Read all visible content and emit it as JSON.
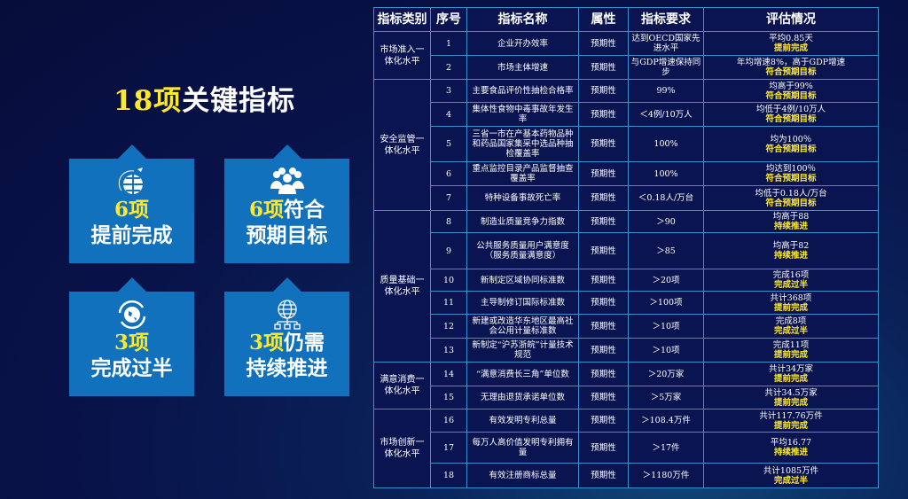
{
  "title": {
    "highlight": "18项",
    "rest": "关键指标"
  },
  "cards": [
    {
      "icon": "globe-airplane-icon",
      "count": "6项",
      "suffix": "",
      "line2": "提前完成"
    },
    {
      "icon": "people-group-icon",
      "count": "6项",
      "suffix": "符合",
      "line2": "预期目标"
    },
    {
      "icon": "earth-refresh-icon",
      "count": "3项",
      "suffix": "",
      "line2": "完成过半"
    },
    {
      "icon": "globe-network-icon",
      "count": "3项",
      "suffix": "仍需",
      "line2": "持续推进"
    }
  ],
  "table": {
    "headers": [
      "指标类别",
      "序号",
      "指标名称",
      "属性",
      "指标要求",
      "评估情况"
    ],
    "categories": [
      {
        "label": "市场准入一体化水平",
        "rows": 2
      },
      {
        "label": "安全监管一体化水平",
        "rows": 5
      },
      {
        "label": "质量基础一体化水平",
        "rows": 6
      },
      {
        "label": "满意消费一体化水平",
        "rows": 2
      },
      {
        "label": "市场创新一体化水平",
        "rows": 3
      }
    ],
    "rows": [
      {
        "no": "1",
        "name": "企业开办效率",
        "attr": "预期性",
        "req": "达到OECD国家先进水平",
        "eval": "平均0.85天",
        "status": "提前完成"
      },
      {
        "no": "2",
        "name": "市场主体增速",
        "attr": "预期性",
        "req": "与GDP增速保持同步",
        "eval": "年均增速8%，高于GDP增速",
        "status": "符合预期目标"
      },
      {
        "no": "3",
        "name": "主要食品评价性抽检合格率",
        "attr": "预期性",
        "req": "99%",
        "eval": "均高于99%",
        "status": "符合预期目标"
      },
      {
        "no": "4",
        "name": "集体性食物中毒事故年发生率",
        "attr": "预期性",
        "req": "＜4例/10万人",
        "eval": "均低于4例/10万人",
        "status": "符合预期目标"
      },
      {
        "no": "5",
        "name": "三省一市在产基本药物品种和药品国家集采中选品种抽检覆盖率",
        "attr": "预期性",
        "req": "100%",
        "eval": "均为100％",
        "status": "符合预期目标"
      },
      {
        "no": "6",
        "name": "重点监控目录产品监督抽查覆盖率",
        "attr": "预期性",
        "req": "100%",
        "eval": "均达到100％",
        "status": "符合预期目标"
      },
      {
        "no": "7",
        "name": "特种设备事故死亡率",
        "attr": "预期性",
        "req": "＜0.18人/万台",
        "eval": "均低于0.18人/万台",
        "status": "符合预期目标"
      },
      {
        "no": "8",
        "name": "制造业质量竞争力指数",
        "attr": "预期性",
        "req": "＞90",
        "eval": "均高于88",
        "status": "持续推进"
      },
      {
        "no": "9",
        "name": "公共服务质量用户满意度（服务质量满意度）",
        "attr": "预期性",
        "req": "＞85",
        "eval": "均高于82",
        "status": "持续推进"
      },
      {
        "no": "10",
        "name": "新制定区域协同标准数",
        "attr": "预期性",
        "req": "＞20项",
        "eval": "完成16项",
        "status": "完成过半"
      },
      {
        "no": "11",
        "name": "主导制修订国际标准数",
        "attr": "预期性",
        "req": "＞100项",
        "eval": "共计368项",
        "status": "提前完成"
      },
      {
        "no": "12",
        "name": "新建或改造华东地区最高社会公用计量标准数",
        "attr": "预期性",
        "req": "＞10项",
        "eval": "完成8项",
        "status": "完成过半"
      },
      {
        "no": "13",
        "name": "新制定“沪苏浙皖”计量技术规范",
        "attr": "预期性",
        "req": "＞10项",
        "eval": "完成11项",
        "status": "提前完成"
      },
      {
        "no": "14",
        "name": "“满意消费长三角”单位数",
        "attr": "预期性",
        "req": "＞20万家",
        "eval": "共计34万家",
        "status": "提前完成"
      },
      {
        "no": "15",
        "name": "无理由退货承诺单位数",
        "attr": "预期性",
        "req": "＞5万家",
        "eval": "共计34.5万家",
        "status": "提前完成"
      },
      {
        "no": "16",
        "name": "有效发明专利总量",
        "attr": "预期性",
        "req": "＞108.4万件",
        "eval": "共计117.76万件",
        "status": "提前完成"
      },
      {
        "no": "17",
        "name": "每万人高价值发明专利拥有量",
        "attr": "预期性",
        "req": "＞17件",
        "eval": "平均16.77",
        "status": "持续推进"
      },
      {
        "no": "18",
        "name": "有效注册商标总量",
        "attr": "预期性",
        "req": "＞1180万件",
        "eval": "共计1085万件",
        "status": "完成过半"
      }
    ]
  },
  "colors": {
    "highlight": "#ffea2a",
    "card": "#1171bd",
    "table_border": "#3f8fd0"
  }
}
